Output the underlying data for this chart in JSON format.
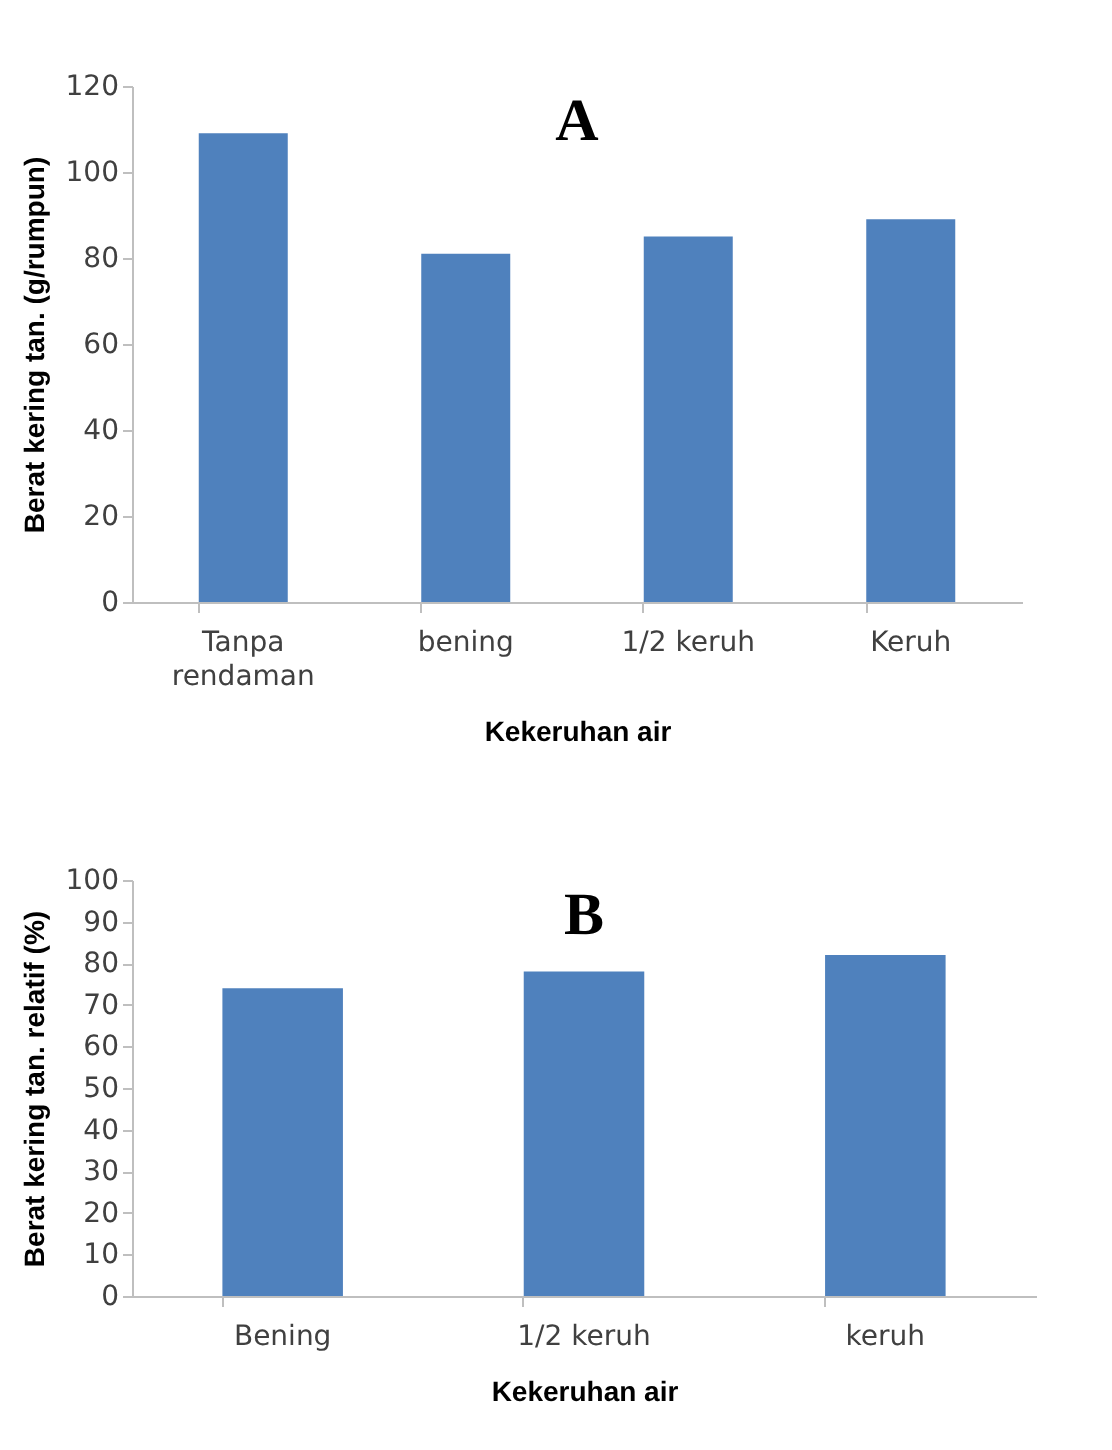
{
  "chart_data": [
    {
      "type": "bar",
      "title": "A",
      "xlabel": "Kekeruhan air",
      "ylabel": "Berat kering tan. (g/rumpun)",
      "categories": [
        "Tanpa rendaman",
        "bening",
        "1/2 keruh",
        "Keruh"
      ],
      "values": [
        109,
        81,
        85,
        89
      ],
      "color": "#4f81bd",
      "ylim": [
        0,
        120
      ],
      "yticks": [
        0,
        20,
        40,
        60,
        80,
        100,
        120
      ],
      "grid": false
    },
    {
      "type": "bar",
      "title": "B",
      "xlabel": "Kekeruhan air",
      "ylabel": "Berat kering tan. relatif (%)",
      "categories": [
        "Bening",
        "1/2 keruh",
        "keruh"
      ],
      "values": [
        74,
        78,
        82
      ],
      "color": "#4f81bd",
      "ylim": [
        0,
        100
      ],
      "yticks": [
        0,
        10,
        20,
        30,
        40,
        50,
        60,
        70,
        80,
        90,
        100
      ],
      "grid": false
    }
  ]
}
